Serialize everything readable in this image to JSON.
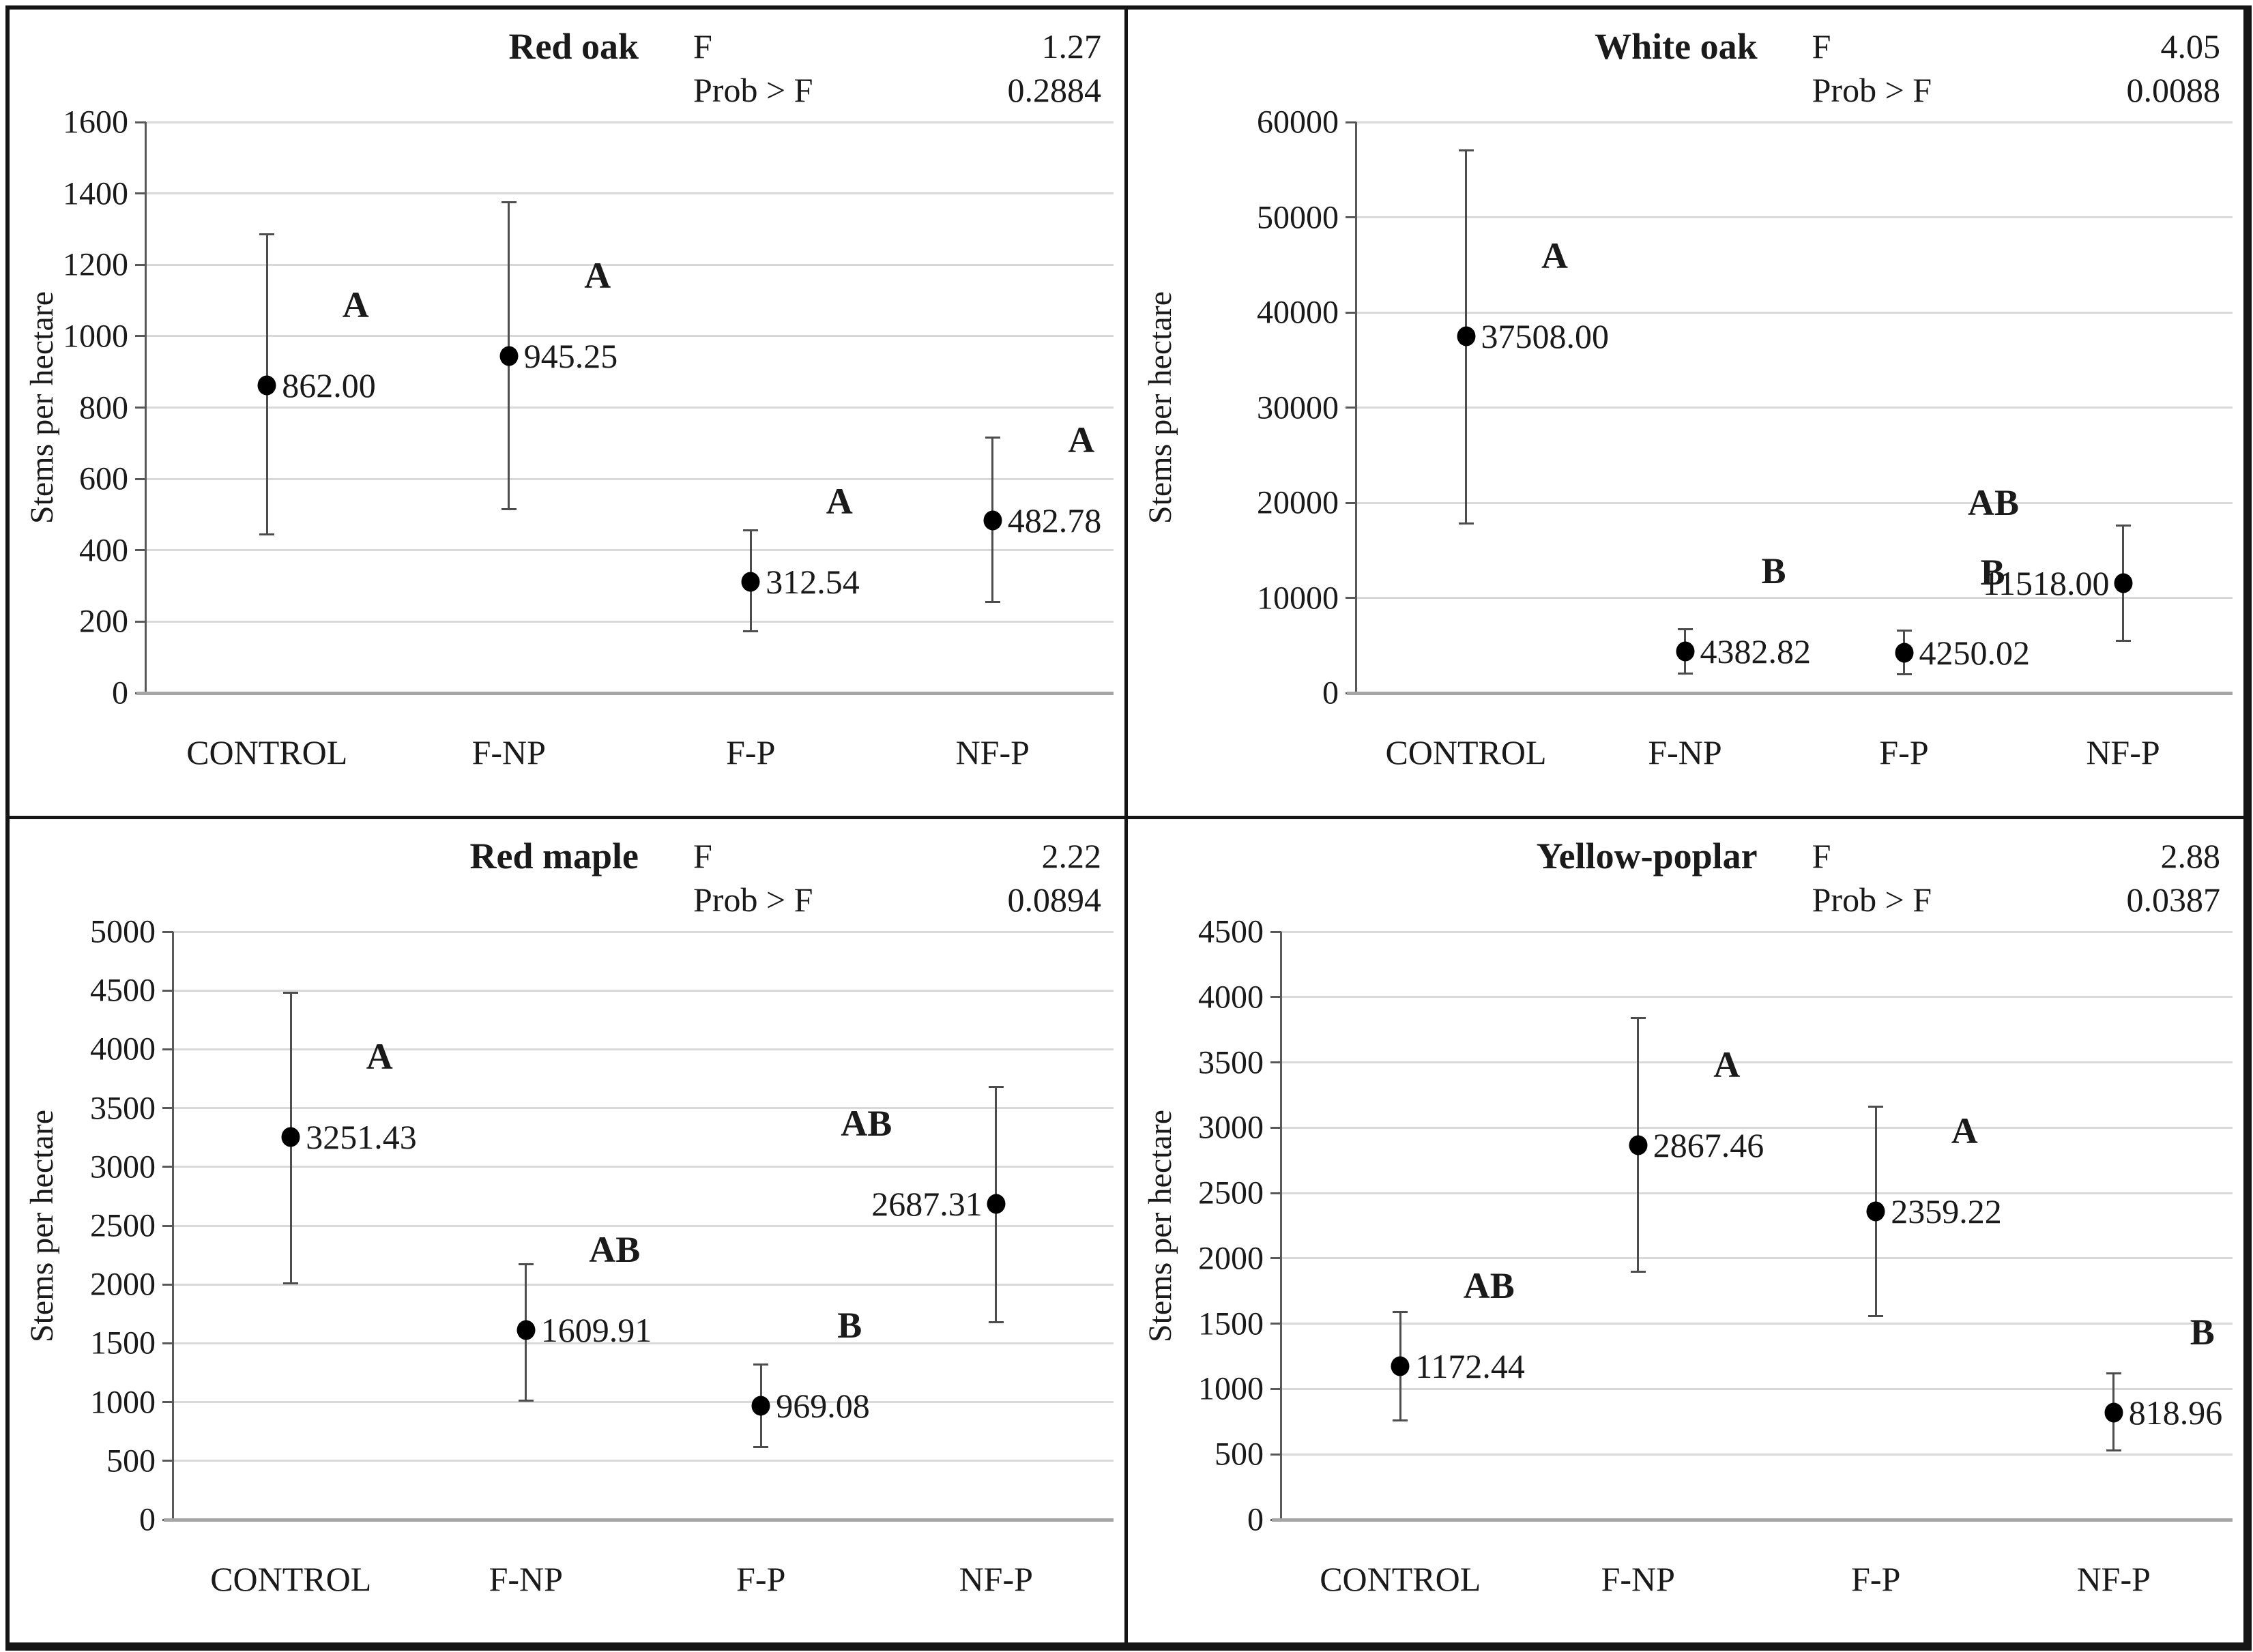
{
  "figure": {
    "ylabel": "Stems per hectare",
    "x_categories": [
      "CONTROL",
      "F-NP",
      "F-P",
      "NF-P"
    ]
  },
  "colors": {
    "text": "#1a1a1a",
    "gridline": "#d9d9d9",
    "axis": "#595959",
    "baseline": "#a6a6a6",
    "error_bar": "#4d4d4d",
    "marker": "#000000",
    "border": "#151515"
  },
  "chart_data": [
    {
      "type": "scatter",
      "title": "Red oak",
      "ylabel": "Stems per hectare",
      "stats": {
        "f_label": "F",
        "f_value": "1.27",
        "prob_label": "Prob > F",
        "prob_value": "0.2884"
      },
      "ylim": [
        0,
        1600
      ],
      "ystep": 200,
      "grid": true,
      "legend": "none",
      "categories": [
        "CONTROL",
        "F-NP",
        "F-P",
        "NF-P"
      ],
      "points": [
        {
          "category": "CONTROL",
          "value": 862.0,
          "display": "862.00",
          "letter": "A",
          "err_low": 445,
          "err_high": 1285,
          "label_side": "right"
        },
        {
          "category": "F-NP",
          "value": 945.25,
          "display": "945.25",
          "letter": "A",
          "err_low": 515,
          "err_high": 1375,
          "label_side": "right"
        },
        {
          "category": "F-P",
          "value": 312.54,
          "display": "312.54",
          "letter": "A",
          "err_low": 173,
          "err_high": 455,
          "label_side": "right"
        },
        {
          "category": "NF-P",
          "value": 482.78,
          "display": "482.78",
          "letter": "A",
          "err_low": 255,
          "err_high": 715,
          "label_side": "right"
        }
      ]
    },
    {
      "type": "scatter",
      "title": "White oak",
      "ylabel": "Stems per hectare",
      "stats": {
        "f_label": "F",
        "f_value": "4.05",
        "prob_label": "Prob > F",
        "prob_value": "0.0088"
      },
      "ylim": [
        0,
        60000
      ],
      "ystep": 10000,
      "grid": true,
      "legend": "none",
      "categories": [
        "CONTROL",
        "F-NP",
        "F-P",
        "NF-P"
      ],
      "points": [
        {
          "category": "CONTROL",
          "value": 37508.0,
          "display": "37508.00",
          "letter": "A",
          "err_low": 17800,
          "err_high": 57000,
          "label_side": "right"
        },
        {
          "category": "F-NP",
          "value": 4382.82,
          "display": "4382.82",
          "letter": "B",
          "err_low": 2050,
          "err_high": 6700,
          "label_side": "right"
        },
        {
          "category": "F-P",
          "value": 4250.02,
          "display": "4250.02",
          "letter": "B",
          "err_low": 1950,
          "err_high": 6550,
          "label_side": "right"
        },
        {
          "category": "NF-P",
          "value": 11518.0,
          "display": "11518.00",
          "letter": "AB",
          "err_low": 5500,
          "err_high": 17600,
          "label_side": "left"
        }
      ]
    },
    {
      "type": "scatter",
      "title": "Red maple",
      "ylabel": "Stems per hectare",
      "stats": {
        "f_label": "F",
        "f_value": "2.22",
        "prob_label": "Prob > F",
        "prob_value": "0.0894"
      },
      "ylim": [
        0,
        5000
      ],
      "ystep": 500,
      "grid": true,
      "legend": "none",
      "categories": [
        "CONTROL",
        "F-NP",
        "F-P",
        "NF-P"
      ],
      "points": [
        {
          "category": "CONTROL",
          "value": 3251.43,
          "display": "3251.43",
          "letter": "A",
          "err_low": 2010,
          "err_high": 4480,
          "label_side": "right"
        },
        {
          "category": "F-NP",
          "value": 1609.91,
          "display": "1609.91",
          "letter": "AB",
          "err_low": 1010,
          "err_high": 2170,
          "label_side": "right"
        },
        {
          "category": "F-P",
          "value": 969.08,
          "display": "969.08",
          "letter": "B",
          "err_low": 620,
          "err_high": 1320,
          "label_side": "right"
        },
        {
          "category": "NF-P",
          "value": 2687.31,
          "display": "2687.31",
          "letter": "AB",
          "err_low": 1680,
          "err_high": 3680,
          "label_side": "left"
        }
      ]
    },
    {
      "type": "scatter",
      "title": "Yellow-poplar",
      "ylabel": "Stems per hectare",
      "stats": {
        "f_label": "F",
        "f_value": "2.88",
        "prob_label": "Prob > F",
        "prob_value": "0.0387"
      },
      "ylim": [
        0,
        4500
      ],
      "ystep": 500,
      "grid": true,
      "legend": "none",
      "categories": [
        "CONTROL",
        "F-NP",
        "F-P",
        "NF-P"
      ],
      "points": [
        {
          "category": "CONTROL",
          "value": 1172.44,
          "display": "1172.44",
          "letter": "AB",
          "err_low": 760,
          "err_high": 1590,
          "label_side": "right"
        },
        {
          "category": "F-NP",
          "value": 2867.46,
          "display": "2867.46",
          "letter": "A",
          "err_low": 1900,
          "err_high": 3840,
          "label_side": "right"
        },
        {
          "category": "F-P",
          "value": 2359.22,
          "display": "2359.22",
          "letter": "A",
          "err_low": 1560,
          "err_high": 3160,
          "label_side": "right"
        },
        {
          "category": "NF-P",
          "value": 818.96,
          "display": "818.96",
          "letter": "B",
          "err_low": 530,
          "err_high": 1120,
          "label_side": "right"
        }
      ]
    }
  ]
}
